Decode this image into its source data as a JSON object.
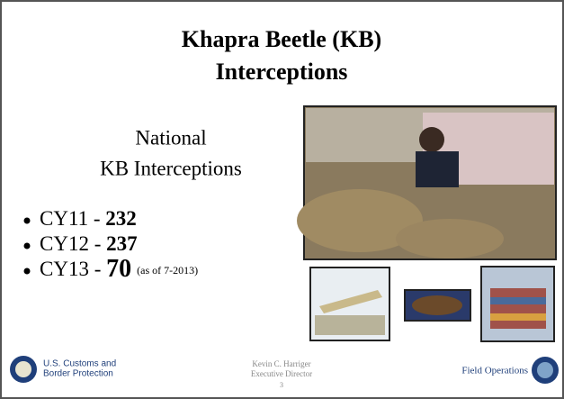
{
  "header": {
    "title_lines": [
      "Khapra Beetle (KB)",
      "Interceptions"
    ]
  },
  "subtitle_lines": [
    "National",
    "KB Interceptions"
  ],
  "bullets": [
    {
      "label": "CY11 - ",
      "value": 232
    },
    {
      "label": "CY12 - ",
      "value": 237
    },
    {
      "label": "CY13 - ",
      "value": 70,
      "note": "(as of 7-2013)"
    }
  ],
  "footer": {
    "agency_lines": [
      "U.S. Customs and",
      "Border Protection"
    ],
    "presenter_lines": [
      "Kevin C. Harriger",
      "Executive Director"
    ],
    "page": 3,
    "office": "Field Operations"
  }
}
